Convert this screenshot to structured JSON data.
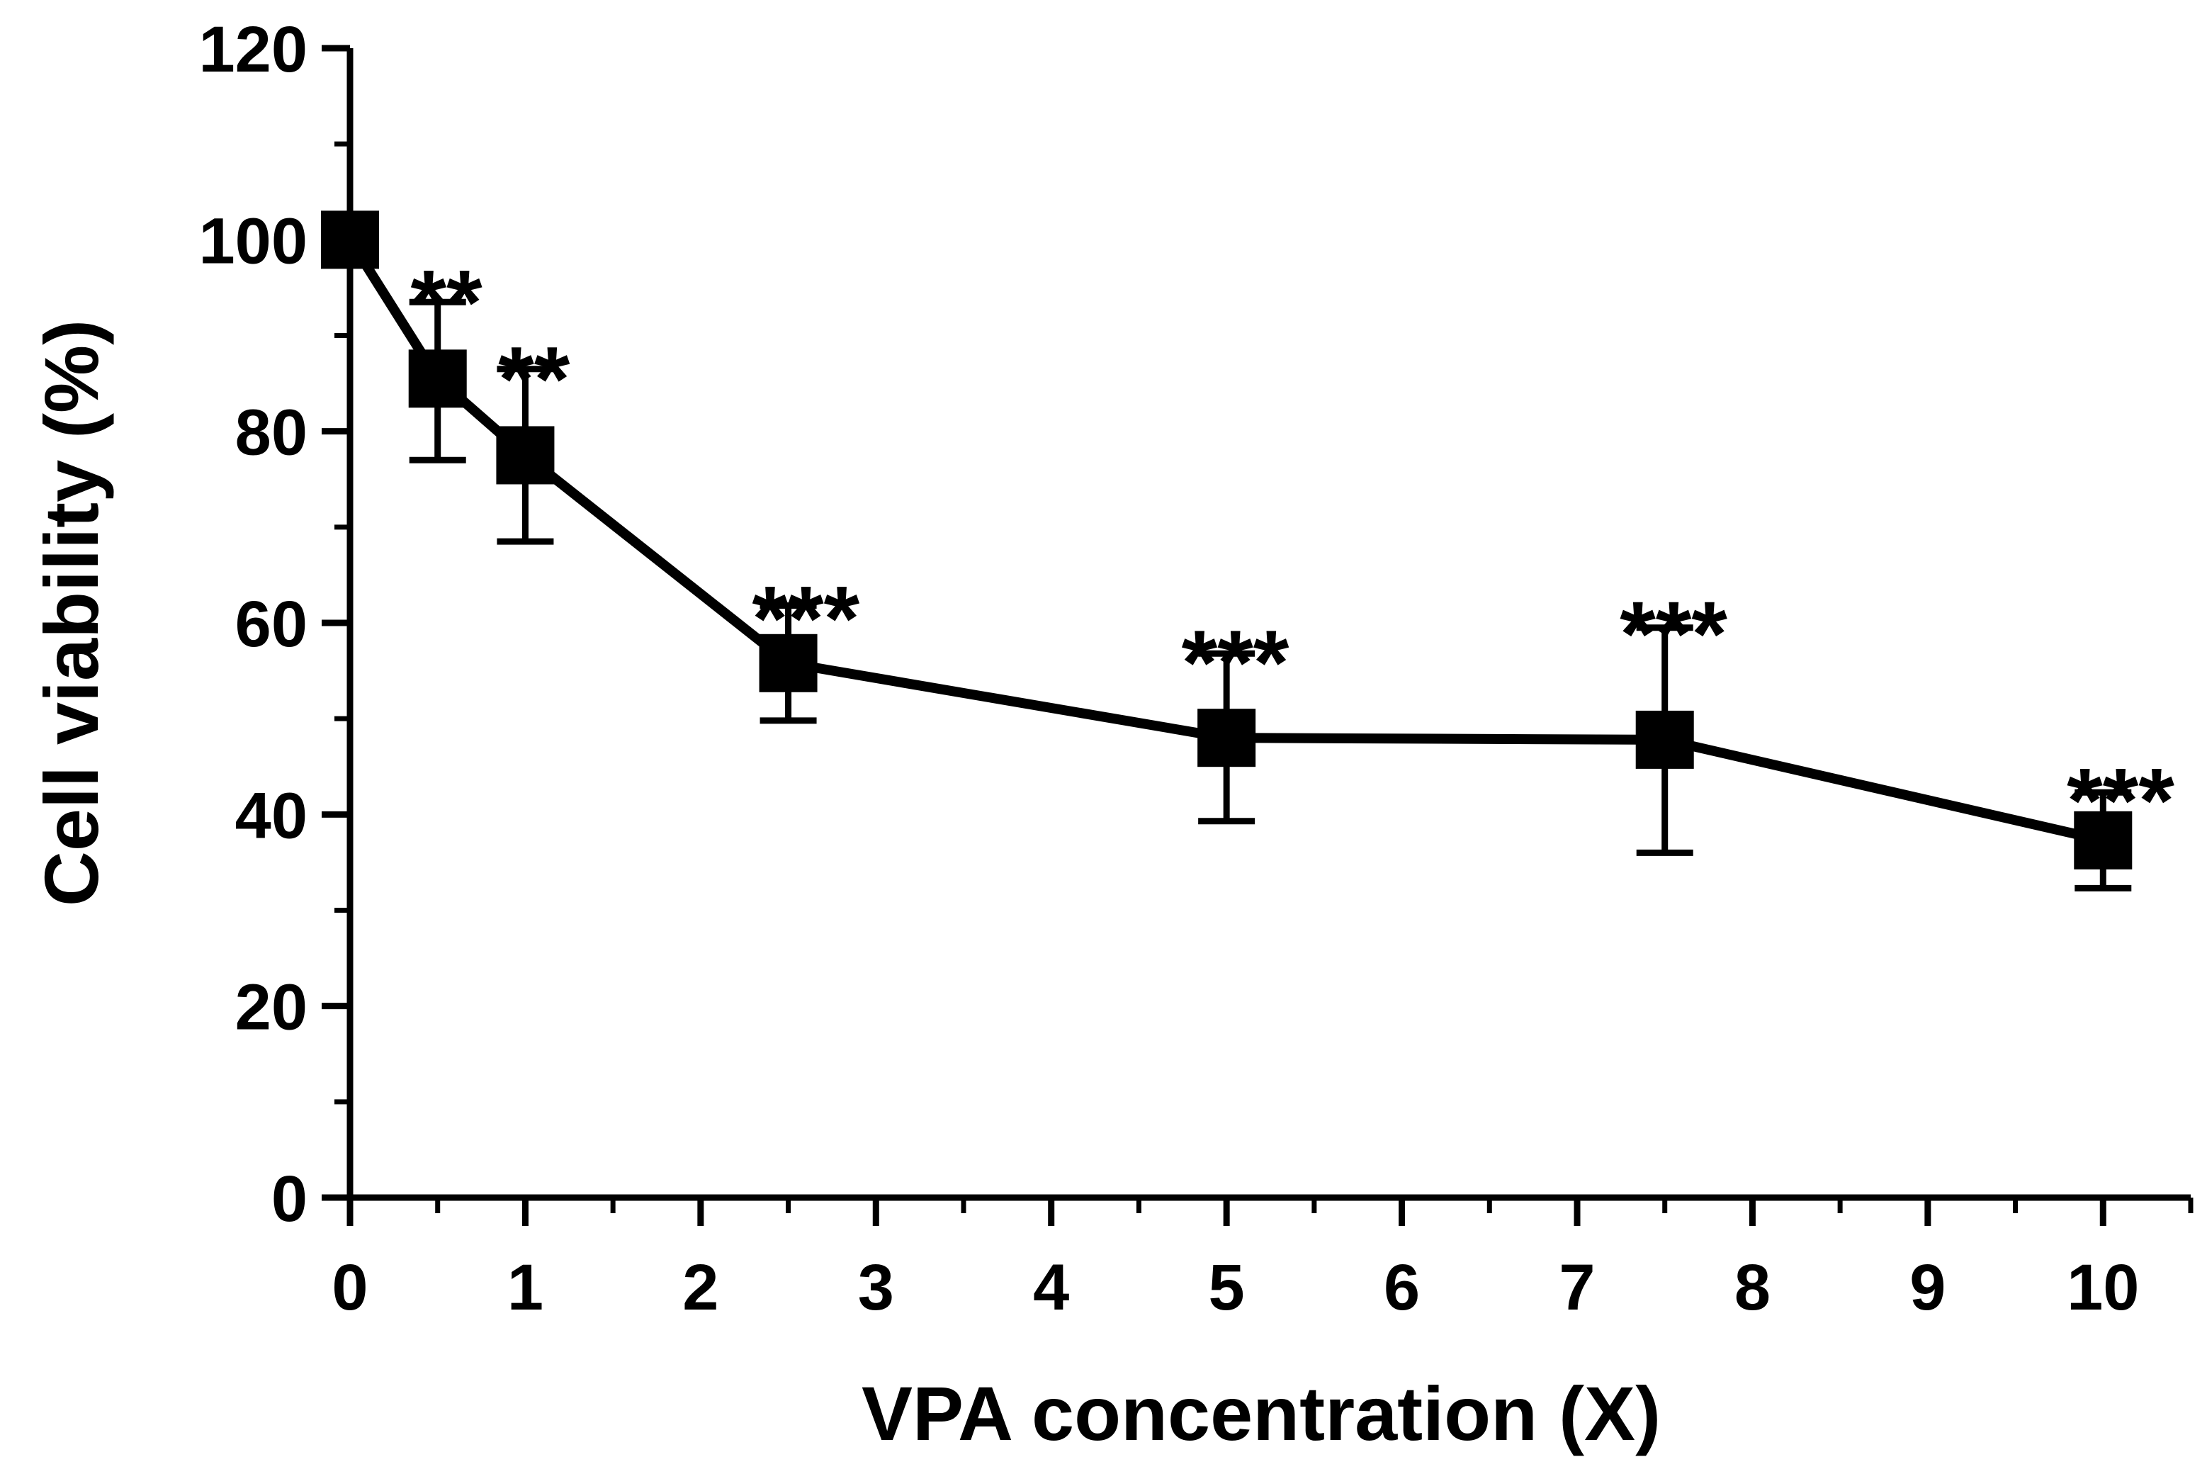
{
  "chart_data": {
    "type": "line",
    "title": "",
    "xlabel": "VPA concentration (X)",
    "ylabel": "Cell viability (%)",
    "xlim": [
      0,
      10.5
    ],
    "ylim": [
      0,
      120
    ],
    "x_major_ticks": [
      0,
      1,
      2,
      3,
      4,
      5,
      6,
      7,
      8,
      9,
      10
    ],
    "x_minor_ticks": [
      0.5,
      1.5,
      2.5,
      3.5,
      4.5,
      5.5,
      6.5,
      7.5,
      8.5,
      9.5,
      10.5
    ],
    "x_tick_labels": [
      "0",
      "1",
      "2",
      "3",
      "4",
      "5",
      "6",
      "7",
      "8",
      "9",
      "10"
    ],
    "y_major_ticks": [
      0,
      20,
      40,
      60,
      80,
      100,
      120
    ],
    "y_minor_ticks": [
      10,
      30,
      50,
      70,
      90,
      110
    ],
    "y_tick_labels": [
      "0",
      "20",
      "40",
      "60",
      "80",
      "100",
      "120"
    ],
    "grid": false,
    "series": [
      {
        "name": "Cell viability",
        "marker": "square",
        "color": "#000000",
        "x": [
          0,
          0.5,
          1,
          2.5,
          5,
          7.5,
          10
        ],
        "y": [
          100,
          85.5,
          77.5,
          55.8,
          48,
          47.8,
          37.3
        ],
        "error_upper": [
          null,
          93.5,
          86.5,
          61.8,
          56.8,
          59.5,
          42.3
        ],
        "error_lower": [
          null,
          77,
          68.5,
          49.8,
          39.3,
          36,
          32.3
        ],
        "annotations": [
          "**",
          "**",
          "***",
          "***",
          "***",
          "***"
        ],
        "annotation_x": [
          0.55,
          1.05,
          2.6,
          5.05,
          7.55,
          10.1
        ],
        "annotation_y": [
          96.8,
          88.8,
          63.8,
          59.2,
          62.2,
          44.8
        ]
      }
    ]
  }
}
